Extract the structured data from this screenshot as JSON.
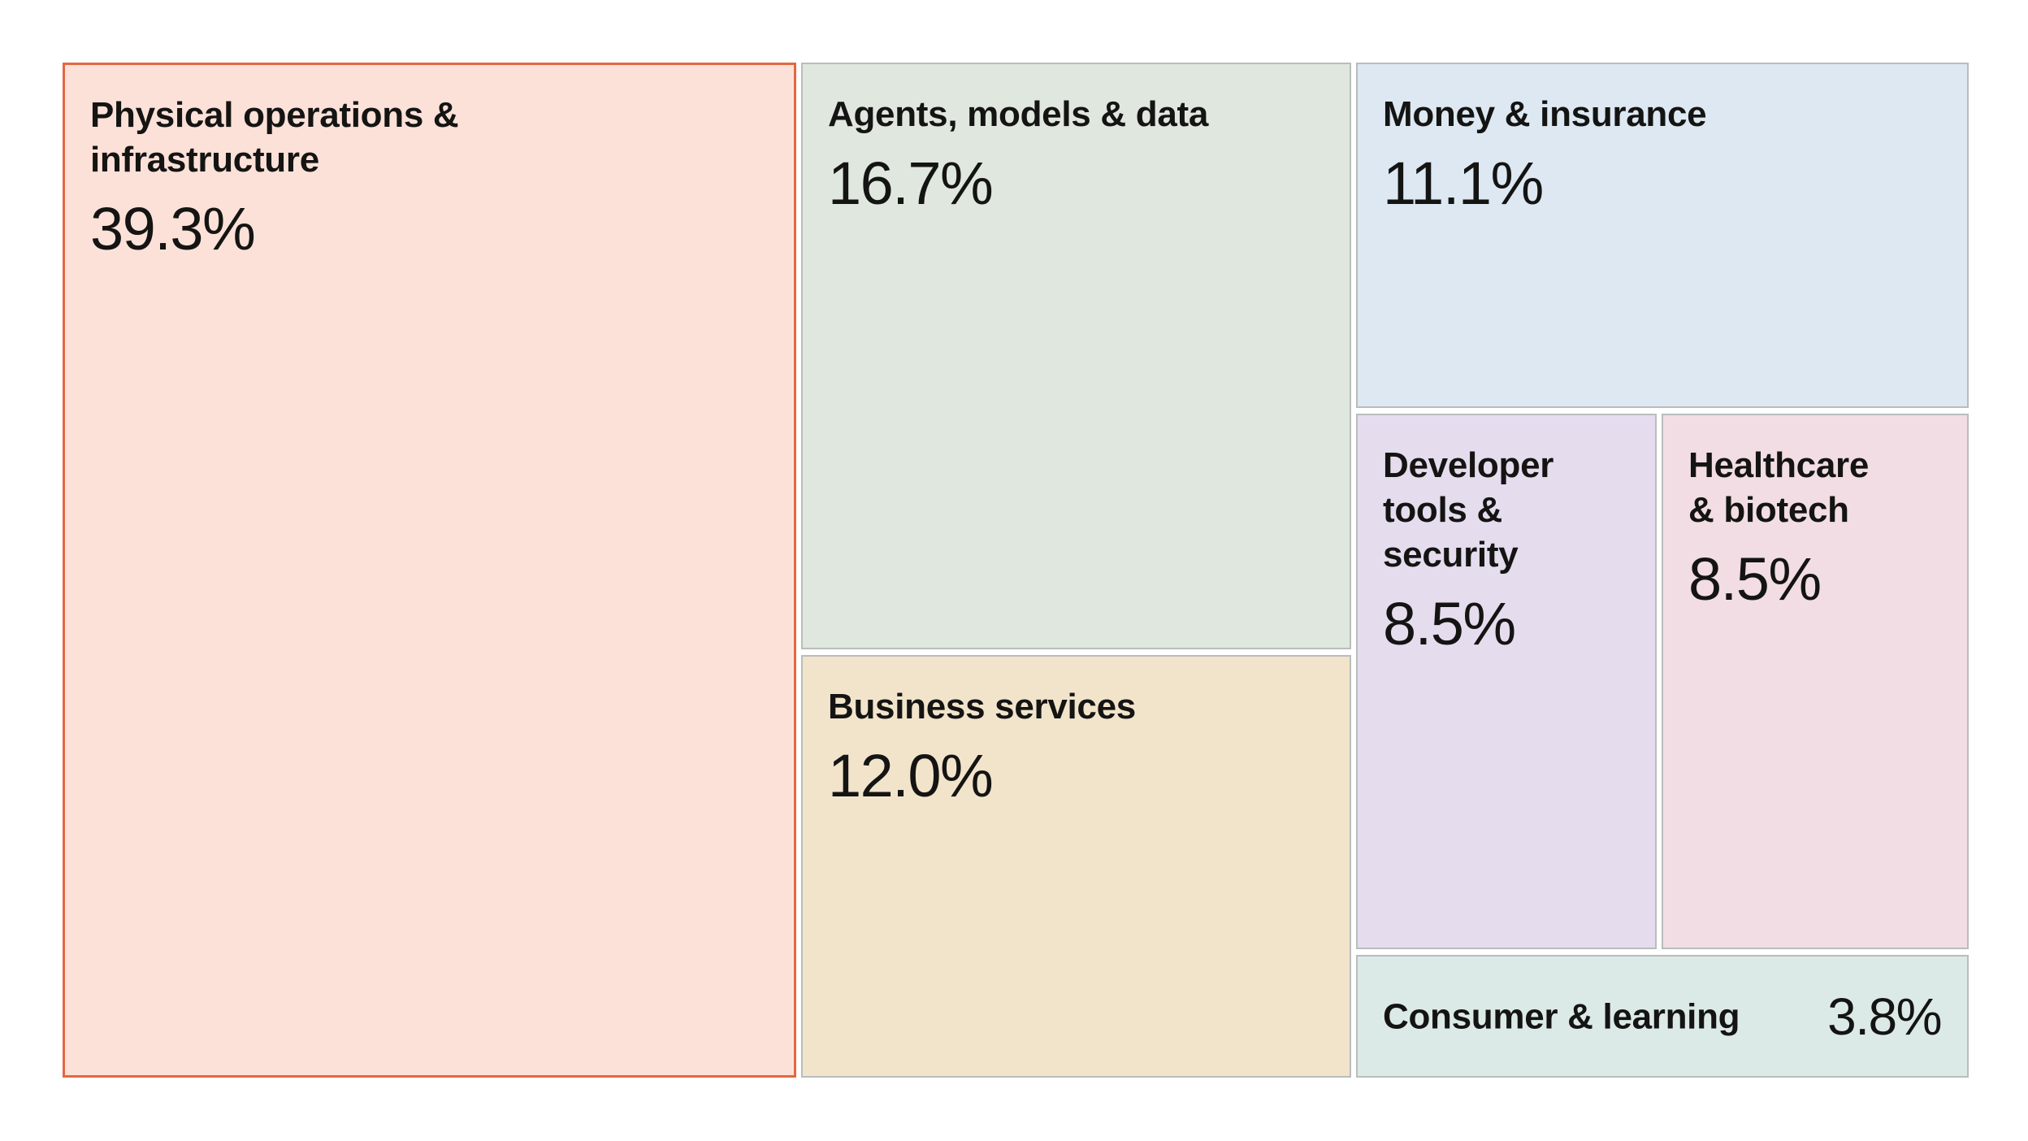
{
  "chart_data": {
    "type": "treemap",
    "title": "",
    "items": [
      {
        "name": "Physical operations & infrastructure",
        "label_lines": [
          "Physical operations &",
          "infrastructure"
        ],
        "value": 39.3,
        "value_label": "39.3%",
        "fill": "#fce1d8",
        "highlight": true
      },
      {
        "name": "Agents, models & data",
        "label_lines": [
          "Agents, models & data"
        ],
        "value": 16.7,
        "value_label": "16.7%",
        "fill": "#dfe7df"
      },
      {
        "name": "Business services",
        "label_lines": [
          "Business services"
        ],
        "value": 12.0,
        "value_label": "12.0%",
        "fill": "#f2e4cb"
      },
      {
        "name": "Money & insurance",
        "label_lines": [
          "Money & insurance"
        ],
        "value": 11.1,
        "value_label": "11.1%",
        "fill": "#dde8f2"
      },
      {
        "name": "Developer tools & security",
        "label_lines": [
          "Developer",
          "tools &",
          "security"
        ],
        "value": 8.5,
        "value_label": "8.5%",
        "fill": "#e5dcee"
      },
      {
        "name": "Healthcare & biotech",
        "label_lines": [
          "Healthcare",
          "& biotech"
        ],
        "value": 8.5,
        "value_label": "8.5%",
        "fill": "#f1dde3"
      },
      {
        "name": "Consumer & learning",
        "label_lines": [
          "Consumer & learning"
        ],
        "value": 3.8,
        "value_label": "3.8%",
        "fill": "#dceae7",
        "inline_value": true
      }
    ],
    "colors": {
      "highlight_border": "#e2683f",
      "tile_border": "#b9bdbb",
      "text": "#141413"
    }
  }
}
